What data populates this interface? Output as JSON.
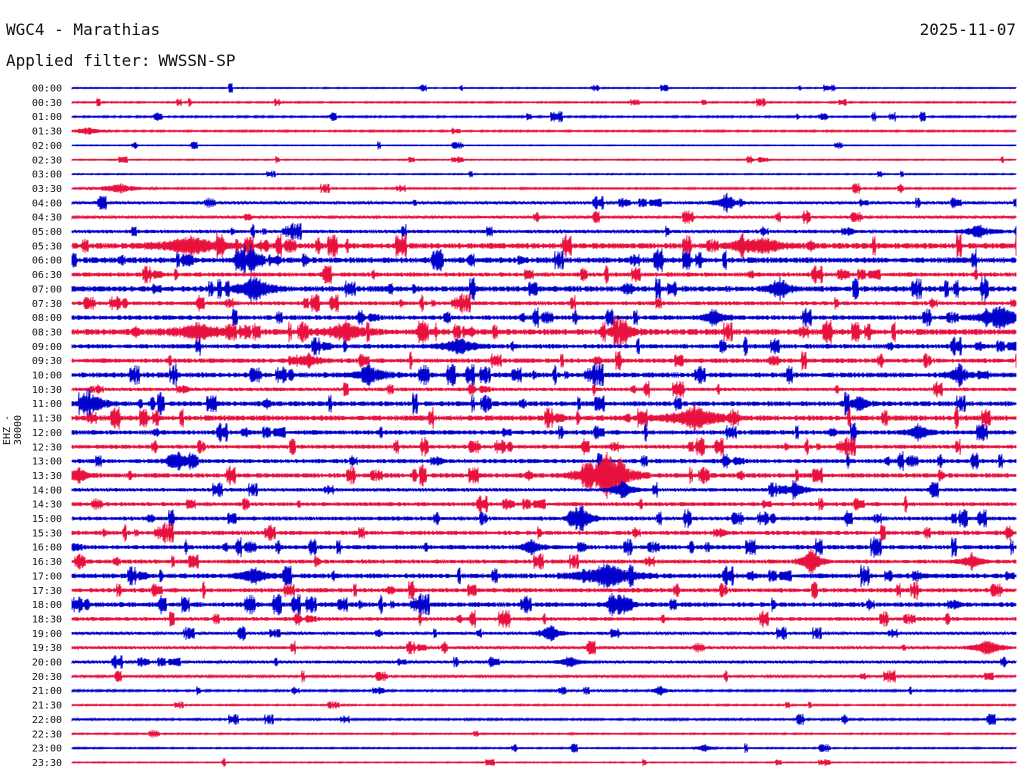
{
  "header": {
    "station": "WGC4 - Marathias",
    "date": "2025-11-07",
    "filter_prefix": "Applied filter:",
    "filter_name": "WWSSN-SP"
  },
  "colors": {
    "even_row": "#0000cc",
    "odd_row": "#e8103c",
    "text": "#111111"
  },
  "chart_data": {
    "type": "line",
    "title": "WGC4 - Marathias",
    "subtitle": "Applied filter: WWSSN-SP",
    "ylabel": "EHZ - 30000",
    "xlabel": "",
    "grid": false,
    "legend": "none",
    "row_labels": [
      "00:00",
      "00:30",
      "01:00",
      "01:30",
      "02:00",
      "02:30",
      "03:00",
      "03:30",
      "04:00",
      "04:30",
      "05:00",
      "05:30",
      "06:00",
      "06:30",
      "07:00",
      "07:30",
      "08:00",
      "08:30",
      "09:00",
      "09:30",
      "10:00",
      "10:30",
      "11:00",
      "11:30",
      "12:00",
      "12:30",
      "13:00",
      "13:30",
      "14:00",
      "14:30",
      "15:00",
      "15:30",
      "16:00",
      "16:30",
      "17:00",
      "17:30",
      "18:00",
      "18:30",
      "19:00",
      "19:30",
      "20:00",
      "20:30",
      "21:00",
      "21:30",
      "22:00",
      "22:30",
      "23:00",
      "23:30"
    ],
    "row_duration_minutes": 30,
    "activity": [
      0.4,
      0.5,
      0.6,
      0.6,
      0.3,
      0.4,
      0.4,
      0.6,
      1.0,
      0.9,
      1.2,
      2.0,
      2.0,
      1.5,
      2.0,
      1.4,
      1.6,
      2.1,
      1.6,
      1.6,
      1.8,
      1.2,
      1.7,
      1.9,
      1.6,
      1.4,
      1.5,
      1.6,
      1.2,
      1.4,
      1.4,
      1.5,
      1.5,
      1.4,
      1.7,
      1.5,
      1.7,
      1.3,
      1.0,
      1.0,
      1.0,
      0.8,
      0.7,
      0.5,
      0.7,
      0.5,
      0.5,
      0.4
    ],
    "events": [
      {
        "row": 3,
        "minute": 0.5,
        "amp": 4,
        "dur": 0.8
      },
      {
        "row": 7,
        "minute": 1.5,
        "amp": 5,
        "dur": 1.2
      },
      {
        "row": 8,
        "minute": 20.8,
        "amp": 10,
        "dur": 0.6
      },
      {
        "row": 10,
        "minute": 28.8,
        "amp": 7,
        "dur": 0.8
      },
      {
        "row": 11,
        "minute": 3.8,
        "amp": 9,
        "dur": 2.0
      },
      {
        "row": 11,
        "minute": 21.3,
        "amp": 7,
        "dur": 0.6
      },
      {
        "row": 11,
        "minute": 22.0,
        "amp": 8,
        "dur": 1.2
      },
      {
        "row": 12,
        "minute": 5.7,
        "amp": 16,
        "dur": 0.4
      },
      {
        "row": 14,
        "minute": 5.8,
        "amp": 14,
        "dur": 1.0
      },
      {
        "row": 14,
        "minute": 22.5,
        "amp": 12,
        "dur": 0.6
      },
      {
        "row": 16,
        "minute": 20.4,
        "amp": 10,
        "dur": 0.6
      },
      {
        "row": 16,
        "minute": 29.5,
        "amp": 13,
        "dur": 1.2
      },
      {
        "row": 17,
        "minute": 4.0,
        "amp": 8,
        "dur": 1.6
      },
      {
        "row": 17,
        "minute": 8.7,
        "amp": 10,
        "dur": 1.2
      },
      {
        "row": 17,
        "minute": 17.5,
        "amp": 8,
        "dur": 0.8
      },
      {
        "row": 18,
        "minute": 12.3,
        "amp": 9,
        "dur": 1.0
      },
      {
        "row": 19,
        "minute": 7.5,
        "amp": 7,
        "dur": 0.8
      },
      {
        "row": 20,
        "minute": 9.5,
        "amp": 8,
        "dur": 1.0
      },
      {
        "row": 20,
        "minute": 28.2,
        "amp": 10,
        "dur": 0.6
      },
      {
        "row": 22,
        "minute": 0.7,
        "amp": 9,
        "dur": 0.8
      },
      {
        "row": 22,
        "minute": 25.0,
        "amp": 8,
        "dur": 0.6
      },
      {
        "row": 23,
        "minute": 19.8,
        "amp": 12,
        "dur": 1.6
      },
      {
        "row": 24,
        "minute": 26.9,
        "amp": 8,
        "dur": 0.6
      },
      {
        "row": 26,
        "minute": 3.4,
        "amp": 9,
        "dur": 0.6
      },
      {
        "row": 27,
        "minute": 17.0,
        "amp": 24,
        "dur": 1.4
      },
      {
        "row": 27,
        "minute": 0.2,
        "amp": 8,
        "dur": 0.6
      },
      {
        "row": 28,
        "minute": 17.5,
        "amp": 10,
        "dur": 0.6
      },
      {
        "row": 28,
        "minute": 23.0,
        "amp": 8,
        "dur": 0.6
      },
      {
        "row": 30,
        "minute": 16.2,
        "amp": 14,
        "dur": 0.6
      },
      {
        "row": 32,
        "minute": 14.6,
        "amp": 8,
        "dur": 0.6
      },
      {
        "row": 33,
        "minute": 23.5,
        "amp": 14,
        "dur": 0.6
      },
      {
        "row": 33,
        "minute": 28.6,
        "amp": 8,
        "dur": 0.6
      },
      {
        "row": 34,
        "minute": 5.8,
        "amp": 9,
        "dur": 0.8
      },
      {
        "row": 34,
        "minute": 17.0,
        "amp": 14,
        "dur": 1.6
      },
      {
        "row": 36,
        "minute": 17.4,
        "amp": 10,
        "dur": 0.6
      },
      {
        "row": 38,
        "minute": 15.2,
        "amp": 10,
        "dur": 0.6
      },
      {
        "row": 39,
        "minute": 29.1,
        "amp": 9,
        "dur": 0.8
      },
      {
        "row": 40,
        "minute": 15.8,
        "amp": 6,
        "dur": 0.6
      },
      {
        "row": 42,
        "minute": 18.7,
        "amp": 6,
        "dur": 0.4
      },
      {
        "row": 46,
        "minute": 20.1,
        "amp": 5,
        "dur": 0.4
      }
    ]
  }
}
